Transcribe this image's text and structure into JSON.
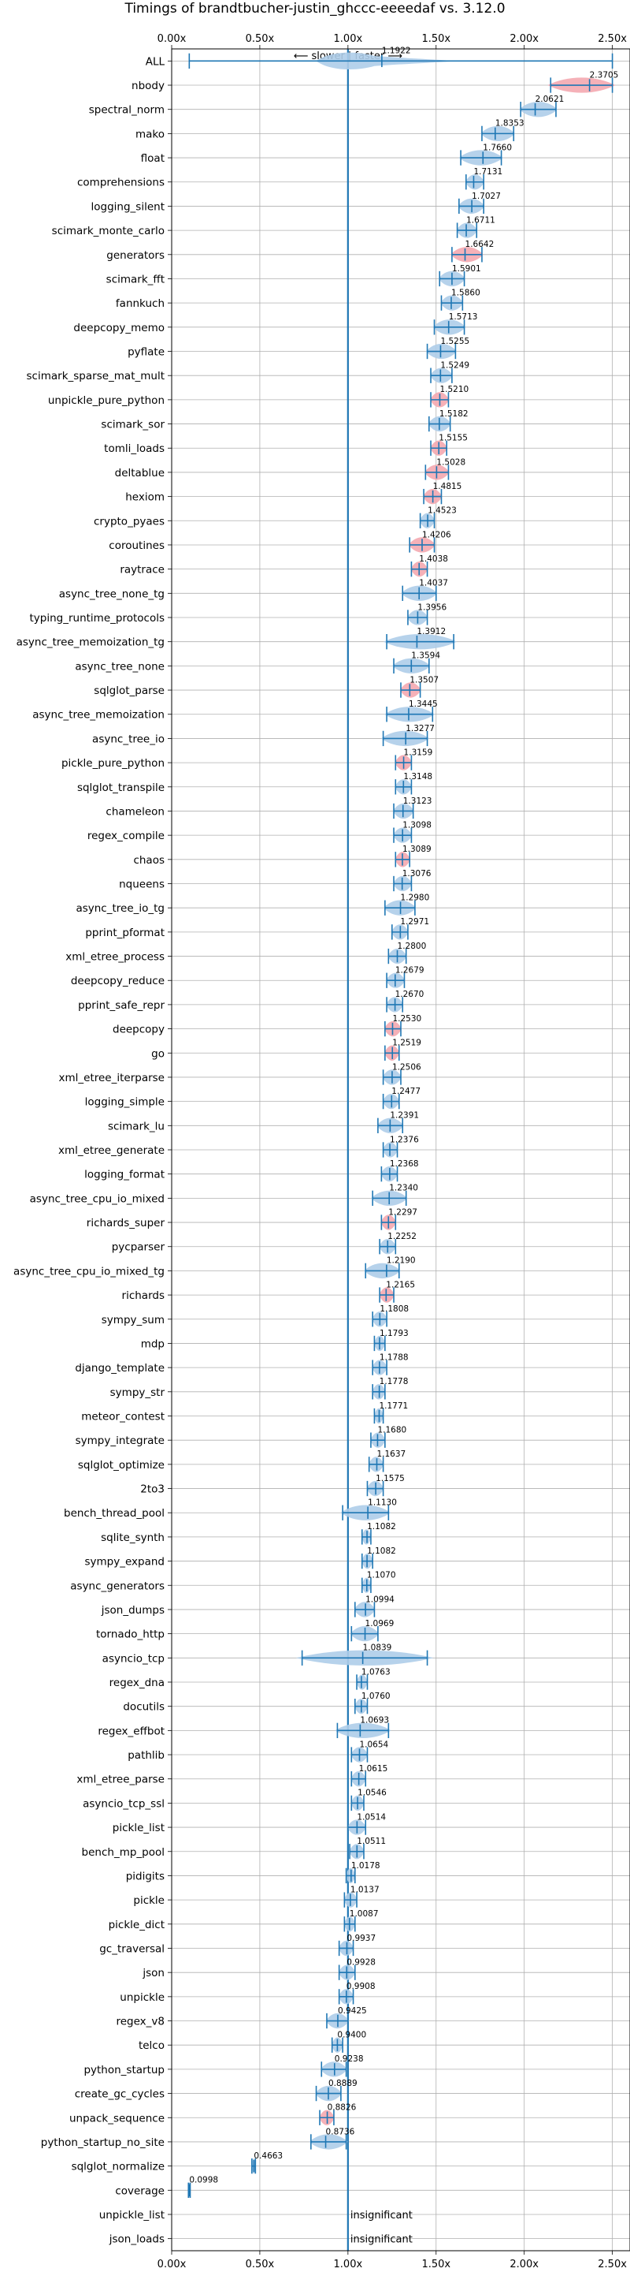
{
  "chart_data": {
    "type": "violin",
    "title": "Timings of brandtbucher-justin_ghccc-eeeedaf vs. 3.12.0",
    "direction_label": "⟵ slower | faster ⟶",
    "xlim": [
      0,
      2.6
    ],
    "xticks": [
      0,
      0.5,
      1.0,
      1.5,
      2.0,
      2.5
    ],
    "xtick_labels": [
      "0.00x",
      "0.50x",
      "1.00x",
      "1.50x",
      "2.00x",
      "2.50x"
    ],
    "reference_line": 1.0,
    "grid": true,
    "colors": {
      "normal": "#1f77b4",
      "fill_normal": "#aecde9",
      "fill_slower": "#f4a8b0"
    },
    "insignificant_label": "insignificant",
    "benchmarks": [
      {
        "name": "ALL",
        "median": 1.1922,
        "min": 0.0998,
        "max": 2.5,
        "slower": false,
        "label": "1.1922"
      },
      {
        "name": "nbody",
        "median": 2.3705,
        "min": 2.15,
        "max": 2.5,
        "slower": true,
        "label": "2.3705"
      },
      {
        "name": "spectral_norm",
        "median": 2.0621,
        "min": 1.98,
        "max": 2.18,
        "slower": false,
        "label": "2.0621"
      },
      {
        "name": "mako",
        "median": 1.8353,
        "min": 1.76,
        "max": 1.94,
        "slower": false,
        "label": "1.8353"
      },
      {
        "name": "float",
        "median": 1.766,
        "min": 1.64,
        "max": 1.87,
        "slower": false,
        "label": "1.7660"
      },
      {
        "name": "comprehensions",
        "median": 1.7131,
        "min": 1.67,
        "max": 1.77,
        "slower": false,
        "label": "1.7131"
      },
      {
        "name": "logging_silent",
        "median": 1.7027,
        "min": 1.63,
        "max": 1.77,
        "slower": false,
        "label": "1.7027"
      },
      {
        "name": "scimark_monte_carlo",
        "median": 1.6711,
        "min": 1.62,
        "max": 1.73,
        "slower": false,
        "label": "1.6711"
      },
      {
        "name": "generators",
        "median": 1.6642,
        "min": 1.59,
        "max": 1.76,
        "slower": true,
        "label": "1.6642"
      },
      {
        "name": "scimark_fft",
        "median": 1.5901,
        "min": 1.52,
        "max": 1.66,
        "slower": false,
        "label": "1.5901"
      },
      {
        "name": "fannkuch",
        "median": 1.586,
        "min": 1.53,
        "max": 1.65,
        "slower": false,
        "label": "1.5860"
      },
      {
        "name": "deepcopy_memo",
        "median": 1.5713,
        "min": 1.49,
        "max": 1.66,
        "slower": false,
        "label": "1.5713"
      },
      {
        "name": "pyflate",
        "median": 1.5255,
        "min": 1.45,
        "max": 1.61,
        "slower": false,
        "label": "1.5255"
      },
      {
        "name": "scimark_sparse_mat_mult",
        "median": 1.5249,
        "min": 1.47,
        "max": 1.59,
        "slower": false,
        "label": "1.5249"
      },
      {
        "name": "unpickle_pure_python",
        "median": 1.521,
        "min": 1.47,
        "max": 1.57,
        "slower": true,
        "label": "1.5210"
      },
      {
        "name": "scimark_sor",
        "median": 1.5182,
        "min": 1.46,
        "max": 1.58,
        "slower": false,
        "label": "1.5182"
      },
      {
        "name": "tomli_loads",
        "median": 1.5155,
        "min": 1.47,
        "max": 1.56,
        "slower": true,
        "label": "1.5155"
      },
      {
        "name": "deltablue",
        "median": 1.5028,
        "min": 1.44,
        "max": 1.57,
        "slower": true,
        "label": "1.5028"
      },
      {
        "name": "hexiom",
        "median": 1.4815,
        "min": 1.43,
        "max": 1.53,
        "slower": true,
        "label": "1.4815"
      },
      {
        "name": "crypto_pyaes",
        "median": 1.4523,
        "min": 1.41,
        "max": 1.49,
        "slower": false,
        "label": "1.4523"
      },
      {
        "name": "coroutines",
        "median": 1.4206,
        "min": 1.35,
        "max": 1.49,
        "slower": true,
        "label": "1.4206"
      },
      {
        "name": "raytrace",
        "median": 1.4038,
        "min": 1.36,
        "max": 1.45,
        "slower": true,
        "label": "1.4038"
      },
      {
        "name": "async_tree_none_tg",
        "median": 1.4037,
        "min": 1.31,
        "max": 1.5,
        "slower": false,
        "label": "1.4037"
      },
      {
        "name": "typing_runtime_protocols",
        "median": 1.3956,
        "min": 1.34,
        "max": 1.45,
        "slower": false,
        "label": "1.3956"
      },
      {
        "name": "async_tree_memoization_tg",
        "median": 1.3912,
        "min": 1.22,
        "max": 1.6,
        "slower": false,
        "label": "1.3912"
      },
      {
        "name": "async_tree_none",
        "median": 1.3594,
        "min": 1.26,
        "max": 1.46,
        "slower": false,
        "label": "1.3594"
      },
      {
        "name": "sqlglot_parse",
        "median": 1.3507,
        "min": 1.3,
        "max": 1.41,
        "slower": true,
        "label": "1.3507"
      },
      {
        "name": "async_tree_memoization",
        "median": 1.3445,
        "min": 1.22,
        "max": 1.48,
        "slower": false,
        "label": "1.3445"
      },
      {
        "name": "async_tree_io",
        "median": 1.3277,
        "min": 1.2,
        "max": 1.45,
        "slower": false,
        "label": "1.3277"
      },
      {
        "name": "pickle_pure_python",
        "median": 1.3159,
        "min": 1.27,
        "max": 1.36,
        "slower": true,
        "label": "1.3159"
      },
      {
        "name": "sqlglot_transpile",
        "median": 1.3148,
        "min": 1.27,
        "max": 1.36,
        "slower": false,
        "label": "1.3148"
      },
      {
        "name": "chameleon",
        "median": 1.3123,
        "min": 1.26,
        "max": 1.37,
        "slower": false,
        "label": "1.3123"
      },
      {
        "name": "regex_compile",
        "median": 1.3098,
        "min": 1.26,
        "max": 1.36,
        "slower": false,
        "label": "1.3098"
      },
      {
        "name": "chaos",
        "median": 1.3089,
        "min": 1.27,
        "max": 1.35,
        "slower": true,
        "label": "1.3089"
      },
      {
        "name": "nqueens",
        "median": 1.3076,
        "min": 1.26,
        "max": 1.36,
        "slower": false,
        "label": "1.3076"
      },
      {
        "name": "async_tree_io_tg",
        "median": 1.298,
        "min": 1.21,
        "max": 1.38,
        "slower": false,
        "label": "1.2980"
      },
      {
        "name": "pprint_pformat",
        "median": 1.2971,
        "min": 1.25,
        "max": 1.34,
        "slower": false,
        "label": "1.2971"
      },
      {
        "name": "xml_etree_process",
        "median": 1.28,
        "min": 1.23,
        "max": 1.33,
        "slower": false,
        "label": "1.2800"
      },
      {
        "name": "deepcopy_reduce",
        "median": 1.2679,
        "min": 1.22,
        "max": 1.32,
        "slower": false,
        "label": "1.2679"
      },
      {
        "name": "pprint_safe_repr",
        "median": 1.267,
        "min": 1.22,
        "max": 1.31,
        "slower": false,
        "label": "1.2670"
      },
      {
        "name": "deepcopy",
        "median": 1.253,
        "min": 1.21,
        "max": 1.3,
        "slower": true,
        "label": "1.2530"
      },
      {
        "name": "go",
        "median": 1.2519,
        "min": 1.21,
        "max": 1.29,
        "slower": true,
        "label": "1.2519"
      },
      {
        "name": "xml_etree_iterparse",
        "median": 1.2506,
        "min": 1.2,
        "max": 1.3,
        "slower": false,
        "label": "1.2506"
      },
      {
        "name": "logging_simple",
        "median": 1.2477,
        "min": 1.2,
        "max": 1.29,
        "slower": false,
        "label": "1.2477"
      },
      {
        "name": "scimark_lu",
        "median": 1.2391,
        "min": 1.17,
        "max": 1.31,
        "slower": false,
        "label": "1.2391"
      },
      {
        "name": "xml_etree_generate",
        "median": 1.2376,
        "min": 1.2,
        "max": 1.28,
        "slower": false,
        "label": "1.2376"
      },
      {
        "name": "logging_format",
        "median": 1.2368,
        "min": 1.19,
        "max": 1.28,
        "slower": false,
        "label": "1.2368"
      },
      {
        "name": "async_tree_cpu_io_mixed",
        "median": 1.234,
        "min": 1.14,
        "max": 1.33,
        "slower": false,
        "label": "1.2340"
      },
      {
        "name": "richards_super",
        "median": 1.2297,
        "min": 1.19,
        "max": 1.27,
        "slower": true,
        "label": "1.2297"
      },
      {
        "name": "pycparser",
        "median": 1.2252,
        "min": 1.18,
        "max": 1.27,
        "slower": false,
        "label": "1.2252"
      },
      {
        "name": "async_tree_cpu_io_mixed_tg",
        "median": 1.219,
        "min": 1.1,
        "max": 1.29,
        "slower": false,
        "label": "1.2190"
      },
      {
        "name": "richards",
        "median": 1.2165,
        "min": 1.18,
        "max": 1.26,
        "slower": true,
        "label": "1.2165"
      },
      {
        "name": "sympy_sum",
        "median": 1.1808,
        "min": 1.14,
        "max": 1.22,
        "slower": false,
        "label": "1.1808"
      },
      {
        "name": "mdp",
        "median": 1.1793,
        "min": 1.15,
        "max": 1.21,
        "slower": false,
        "label": "1.1793"
      },
      {
        "name": "django_template",
        "median": 1.1788,
        "min": 1.14,
        "max": 1.22,
        "slower": false,
        "label": "1.1788"
      },
      {
        "name": "sympy_str",
        "median": 1.1778,
        "min": 1.14,
        "max": 1.21,
        "slower": false,
        "label": "1.1778"
      },
      {
        "name": "meteor_contest",
        "median": 1.1771,
        "min": 1.15,
        "max": 1.2,
        "slower": false,
        "label": "1.1771"
      },
      {
        "name": "sympy_integrate",
        "median": 1.168,
        "min": 1.13,
        "max": 1.21,
        "slower": false,
        "label": "1.1680"
      },
      {
        "name": "sqlglot_optimize",
        "median": 1.1637,
        "min": 1.12,
        "max": 1.2,
        "slower": false,
        "label": "1.1637"
      },
      {
        "name": "2to3",
        "median": 1.1575,
        "min": 1.11,
        "max": 1.2,
        "slower": false,
        "label": "1.1575"
      },
      {
        "name": "bench_thread_pool",
        "median": 1.113,
        "min": 0.97,
        "max": 1.23,
        "slower": false,
        "label": "1.1130"
      },
      {
        "name": "sqlite_synth",
        "median": 1.1082,
        "min": 1.08,
        "max": 1.13,
        "slower": false,
        "label": "1.1082"
      },
      {
        "name": "sympy_expand",
        "median": 1.1082,
        "min": 1.08,
        "max": 1.14,
        "slower": false,
        "label": "1.1082"
      },
      {
        "name": "async_generators",
        "median": 1.107,
        "min": 1.08,
        "max": 1.13,
        "slower": false,
        "label": "1.1070"
      },
      {
        "name": "json_dumps",
        "median": 1.0994,
        "min": 1.04,
        "max": 1.15,
        "slower": false,
        "label": "1.0994"
      },
      {
        "name": "tornado_http",
        "median": 1.0969,
        "min": 1.02,
        "max": 1.17,
        "slower": false,
        "label": "1.0969"
      },
      {
        "name": "asyncio_tcp",
        "median": 1.0839,
        "min": 0.74,
        "max": 1.45,
        "slower": false,
        "label": "1.0839"
      },
      {
        "name": "regex_dna",
        "median": 1.0763,
        "min": 1.05,
        "max": 1.11,
        "slower": false,
        "label": "1.0763"
      },
      {
        "name": "docutils",
        "median": 1.076,
        "min": 1.04,
        "max": 1.11,
        "slower": false,
        "label": "1.0760"
      },
      {
        "name": "regex_effbot",
        "median": 1.0693,
        "min": 0.94,
        "max": 1.23,
        "slower": false,
        "label": "1.0693"
      },
      {
        "name": "pathlib",
        "median": 1.0654,
        "min": 1.02,
        "max": 1.11,
        "slower": false,
        "label": "1.0654"
      },
      {
        "name": "xml_etree_parse",
        "median": 1.0615,
        "min": 1.02,
        "max": 1.1,
        "slower": false,
        "label": "1.0615"
      },
      {
        "name": "asyncio_tcp_ssl",
        "median": 1.0546,
        "min": 1.02,
        "max": 1.09,
        "slower": false,
        "label": "1.0546"
      },
      {
        "name": "pickle_list",
        "median": 1.0514,
        "min": 1.0,
        "max": 1.1,
        "slower": false,
        "label": "1.0514"
      },
      {
        "name": "bench_mp_pool",
        "median": 1.0511,
        "min": 1.01,
        "max": 1.09,
        "slower": false,
        "label": "1.0511"
      },
      {
        "name": "pidigits",
        "median": 1.0178,
        "min": 0.99,
        "max": 1.04,
        "slower": false,
        "label": "1.0178"
      },
      {
        "name": "pickle",
        "median": 1.0137,
        "min": 0.98,
        "max": 1.05,
        "slower": false,
        "label": "1.0137"
      },
      {
        "name": "pickle_dict",
        "median": 1.0087,
        "min": 0.98,
        "max": 1.04,
        "slower": false,
        "label": "1.0087"
      },
      {
        "name": "gc_traversal",
        "median": 0.9937,
        "min": 0.95,
        "max": 1.03,
        "slower": false,
        "label": "0.9937"
      },
      {
        "name": "json",
        "median": 0.9928,
        "min": 0.95,
        "max": 1.04,
        "slower": false,
        "label": "0.9928"
      },
      {
        "name": "unpickle",
        "median": 0.9908,
        "min": 0.95,
        "max": 1.03,
        "slower": false,
        "label": "0.9908"
      },
      {
        "name": "regex_v8",
        "median": 0.9425,
        "min": 0.88,
        "max": 1.0,
        "slower": false,
        "label": "0.9425"
      },
      {
        "name": "telco",
        "median": 0.94,
        "min": 0.91,
        "max": 0.97,
        "slower": false,
        "label": "0.9400"
      },
      {
        "name": "python_startup",
        "median": 0.9238,
        "min": 0.85,
        "max": 0.99,
        "slower": false,
        "label": "0.9238"
      },
      {
        "name": "create_gc_cycles",
        "median": 0.8889,
        "min": 0.82,
        "max": 0.96,
        "slower": false,
        "label": "0.8889"
      },
      {
        "name": "unpack_sequence",
        "median": 0.8826,
        "min": 0.84,
        "max": 0.92,
        "slower": true,
        "label": "0.8826"
      },
      {
        "name": "python_startup_no_site",
        "median": 0.8736,
        "min": 0.79,
        "max": 0.99,
        "slower": false,
        "label": "0.8736"
      },
      {
        "name": "sqlglot_normalize",
        "median": 0.4663,
        "min": 0.455,
        "max": 0.475,
        "slower": false,
        "label": "0.4663"
      },
      {
        "name": "coverage",
        "median": 0.0998,
        "min": 0.095,
        "max": 0.105,
        "slower": false,
        "label": "0.0998"
      },
      {
        "name": "unpickle_list",
        "median": null,
        "insignificant": true
      },
      {
        "name": "json_loads",
        "median": null,
        "insignificant": true
      }
    ]
  }
}
